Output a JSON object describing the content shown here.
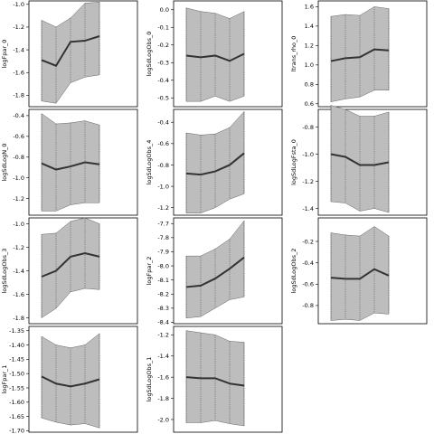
{
  "chart_data": [
    {
      "type": "area",
      "ylabel": "logFpar_0",
      "x": [
        1,
        2,
        3,
        4,
        5
      ],
      "ylim": [
        -1.9,
        -0.97
      ],
      "yticks": [
        -1.0,
        -1.2,
        -1.4,
        -1.6,
        -1.8
      ],
      "tick_labels": [
        "-1.0",
        "-1.2",
        "-1.4",
        "-1.6",
        "-1.8"
      ],
      "mean": [
        -1.49,
        -1.54,
        -1.33,
        -1.32,
        -1.28
      ],
      "lower": [
        -1.85,
        -1.87,
        -1.69,
        -1.64,
        -1.62
      ],
      "upper": [
        -1.14,
        -1.2,
        -1.12,
        -0.99,
        -0.98
      ]
    },
    {
      "type": "area",
      "ylabel": "logSdLogN_0",
      "x": [
        1,
        2,
        3,
        4,
        5
      ],
      "ylim": [
        -1.36,
        -0.34
      ],
      "yticks": [
        -0.4,
        -0.6,
        -0.8,
        -1.0,
        -1.2
      ],
      "tick_labels": [
        "-0.4",
        "-0.6",
        "-0.8",
        "-1.0",
        "-1.2"
      ],
      "mean": [
        -0.86,
        -0.92,
        -0.89,
        -0.85,
        -0.87
      ],
      "lower": [
        -1.32,
        -1.32,
        -1.26,
        -1.24,
        -1.24
      ],
      "upper": [
        -0.38,
        -0.48,
        -0.47,
        -0.45,
        -0.49
      ]
    },
    {
      "type": "area",
      "ylabel": "logSdLogObs_3",
      "x": [
        1,
        2,
        3,
        4,
        5
      ],
      "ylim": [
        -1.85,
        -0.95
      ],
      "yticks": [
        -1.0,
        -1.2,
        -1.4,
        -1.6,
        -1.8
      ],
      "tick_labels": [
        "-1.0",
        "-1.2",
        "-1.4",
        "-1.6",
        "-1.8"
      ],
      "mean": [
        -1.45,
        -1.4,
        -1.28,
        -1.25,
        -1.28
      ],
      "lower": [
        -1.8,
        -1.72,
        -1.58,
        -1.55,
        -1.56
      ],
      "upper": [
        -1.09,
        -1.08,
        -0.98,
        -0.95,
        -1.0
      ]
    },
    {
      "type": "area",
      "ylabel": "logFpar_1",
      "x": [
        1,
        2,
        3,
        4,
        5
      ],
      "ylim": [
        -1.705,
        -1.335
      ],
      "yticks": [
        -1.35,
        -1.4,
        -1.45,
        -1.5,
        -1.55,
        -1.6,
        -1.65,
        -1.7
      ],
      "tick_labels": [
        "-1.35",
        "-1.40",
        "-1.45",
        "-1.50",
        "-1.55",
        "-1.60",
        "-1.65",
        "-1.70"
      ],
      "mean": [
        -1.51,
        -1.535,
        -1.545,
        -1.535,
        -1.52
      ],
      "lower": [
        -1.655,
        -1.67,
        -1.68,
        -1.675,
        -1.69
      ],
      "upper": [
        -1.37,
        -1.4,
        -1.41,
        -1.4,
        -1.36
      ]
    },
    {
      "type": "area",
      "ylabel": "logSdLogObs_0",
      "x": [
        1,
        2,
        3,
        4,
        5
      ],
      "ylim": [
        -0.55,
        0.05
      ],
      "yticks": [
        0.0,
        -0.1,
        -0.2,
        -0.3,
        -0.4,
        -0.5
      ],
      "tick_labels": [
        "0.0",
        "-0.1",
        "-0.2",
        "-0.3",
        "-0.4",
        "-0.5"
      ],
      "mean": [
        -0.26,
        -0.27,
        -0.26,
        -0.29,
        -0.25
      ],
      "lower": [
        -0.52,
        -0.52,
        -0.49,
        -0.52,
        -0.49
      ],
      "upper": [
        0.01,
        -0.01,
        -0.02,
        -0.05,
        -0.01
      ]
    },
    {
      "type": "area",
      "ylabel": "logSdLogObs_4",
      "x": [
        1,
        2,
        3,
        4,
        5
      ],
      "ylim": [
        -1.27,
        -0.28
      ],
      "yticks": [
        -0.4,
        -0.6,
        -0.8,
        -1.0,
        -1.2
      ],
      "tick_labels": [
        "-0.4",
        "-0.6",
        "-0.8",
        "-1.0",
        "-1.2"
      ],
      "mean": [
        -0.88,
        -0.89,
        -0.86,
        -0.8,
        -0.69
      ],
      "lower": [
        -1.25,
        -1.25,
        -1.2,
        -1.12,
        -1.07
      ],
      "upper": [
        -0.5,
        -0.52,
        -0.51,
        -0.45,
        -0.3
      ]
    },
    {
      "type": "area",
      "ylabel": "logFpar_2",
      "x": [
        1,
        2,
        3,
        4,
        5
      ],
      "ylim": [
        -8.41,
        -7.66
      ],
      "yticks": [
        -7.7,
        -7.8,
        -7.9,
        -8.0,
        -8.1,
        -8.2,
        -8.3,
        -8.4
      ],
      "tick_labels": [
        "-7.7",
        "-7.8",
        "-7.9",
        "-8.0",
        "-8.1",
        "-8.2",
        "-8.3",
        "-8.4"
      ],
      "mean": [
        -8.15,
        -8.14,
        -8.09,
        -8.02,
        -7.94
      ],
      "lower": [
        -8.37,
        -8.36,
        -8.3,
        -8.24,
        -8.22
      ],
      "upper": [
        -7.93,
        -7.93,
        -7.88,
        -7.81,
        -7.68
      ]
    },
    {
      "type": "area",
      "ylabel": "logSdLogObs_1",
      "x": [
        1,
        2,
        3,
        4,
        5
      ],
      "ylim": [
        -2.12,
        -1.12
      ],
      "yticks": [
        -1.2,
        -1.4,
        -1.6,
        -1.8,
        -2.0
      ],
      "tick_labels": [
        "-1.2",
        "-1.4",
        "-1.6",
        "-1.8",
        "-2.0"
      ],
      "mean": [
        -1.6,
        -1.61,
        -1.61,
        -1.66,
        -1.68
      ],
      "lower": [
        -2.03,
        -2.03,
        -2.01,
        -2.04,
        -2.06
      ],
      "upper": [
        -1.16,
        -1.18,
        -1.2,
        -1.26,
        -1.27
      ]
    },
    {
      "type": "area",
      "ylabel": "ltrans_rho_0",
      "x": [
        1,
        2,
        3,
        4,
        5
      ],
      "ylim": [
        0.57,
        1.66
      ],
      "yticks": [
        1.6,
        1.4,
        1.2,
        1.0,
        0.8,
        0.6
      ],
      "tick_labels": [
        "1.6",
        "1.4",
        "1.2",
        "1.0",
        "0.8",
        "0.6"
      ],
      "mean": [
        1.04,
        1.07,
        1.08,
        1.16,
        1.15
      ],
      "lower": [
        0.62,
        0.65,
        0.67,
        0.74,
        0.74
      ],
      "upper": [
        1.5,
        1.52,
        1.51,
        1.6,
        1.58
      ]
    },
    {
      "type": "area",
      "ylabel": "logSdLogFsta_0",
      "x": [
        1,
        2,
        3,
        4,
        5
      ],
      "ylim": [
        -1.45,
        -0.67
      ],
      "yticks": [
        -0.8,
        -1.0,
        -1.2,
        -1.4
      ],
      "tick_labels": [
        "-0.8",
        "-1.0",
        "-1.2",
        "-1.4"
      ],
      "mean": [
        -1.0,
        -1.02,
        -1.08,
        -1.08,
        -1.06
      ],
      "lower": [
        -1.35,
        -1.36,
        -1.42,
        -1.4,
        -1.43
      ],
      "upper": [
        -0.64,
        -0.67,
        -0.72,
        -0.72,
        -0.69
      ]
    },
    {
      "type": "area",
      "ylabel": "logSdLogObs_2",
      "x": [
        1,
        2,
        3,
        4,
        5
      ],
      "ylim": [
        -0.97,
        0.02
      ],
      "yticks": [
        -0.2,
        -0.4,
        -0.6,
        -0.8
      ],
      "tick_labels": [
        "-0.2",
        "-0.4",
        "-0.6",
        "-0.8"
      ],
      "mean": [
        -0.54,
        -0.55,
        -0.55,
        -0.46,
        -0.52
      ],
      "lower": [
        -0.94,
        -0.93,
        -0.94,
        -0.87,
        -0.88
      ],
      "upper": [
        -0.12,
        -0.14,
        -0.15,
        -0.06,
        -0.15
      ]
    }
  ]
}
